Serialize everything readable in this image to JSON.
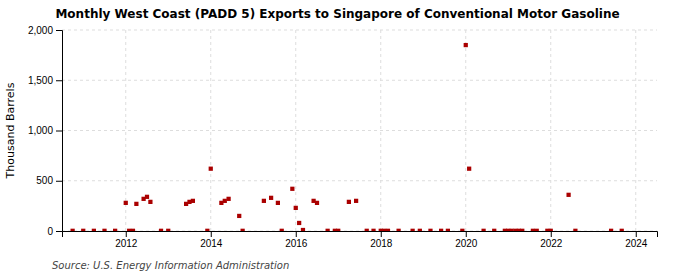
{
  "chart_data": {
    "type": "scatter",
    "title": "Monthly West Coast (PADD 5) Exports to Singapore of Conventional Motor Gasoline",
    "y_label": "Thousand Barrels",
    "annotations": [
      "Source: U.S. Energy Information Administration"
    ],
    "x": [
      2010.75,
      2011.0,
      2011.25,
      2011.5,
      2011.75,
      2012.0,
      2012.08,
      2012.17,
      2012.25,
      2012.42,
      2012.5,
      2012.58,
      2012.83,
      2013.0,
      2013.42,
      2013.5,
      2013.58,
      2013.92,
      2014.0,
      2014.25,
      2014.33,
      2014.42,
      2014.67,
      2014.75,
      2015.25,
      2015.42,
      2015.58,
      2015.67,
      2015.92,
      2016.0,
      2016.08,
      2016.17,
      2016.42,
      2016.5,
      2016.75,
      2016.92,
      2017.0,
      2017.25,
      2017.42,
      2017.67,
      2017.83,
      2018.0,
      2018.08,
      2018.17,
      2018.42,
      2018.75,
      2018.92,
      2019.17,
      2019.42,
      2019.58,
      2019.92,
      2020.0,
      2020.08,
      2020.42,
      2020.67,
      2020.92,
      2021.0,
      2021.08,
      2021.17,
      2021.25,
      2021.33,
      2021.58,
      2021.67,
      2021.92,
      2022.0,
      2022.42,
      2022.58,
      2023.42,
      2023.67
    ],
    "values": [
      2,
      2,
      2,
      2,
      2,
      280,
      2,
      2,
      270,
      320,
      340,
      290,
      2,
      2,
      270,
      290,
      300,
      2,
      620,
      280,
      300,
      320,
      150,
      2,
      300,
      330,
      280,
      2,
      420,
      230,
      80,
      10,
      300,
      280,
      2,
      2,
      2,
      290,
      300,
      2,
      2,
      2,
      2,
      2,
      2,
      2,
      2,
      2,
      2,
      2,
      2,
      1850,
      620,
      2,
      2,
      2,
      2,
      2,
      2,
      2,
      2,
      2,
      2,
      2,
      2,
      360,
      2,
      2,
      2
    ],
    "color": "#aa0000",
    "marker": "square",
    "xlim": [
      2010.5,
      2024.5
    ],
    "xticks": [
      2012,
      2014,
      2016,
      2018,
      2020,
      2022,
      2024
    ],
    "ylim": [
      0,
      2000
    ],
    "yticks": [
      0,
      500,
      {
        "value": 1000,
        "label": "1,000"
      },
      {
        "value": 1500,
        "label": "1,500"
      },
      {
        "value": 2000,
        "label": "2,000"
      }
    ],
    "grid": true
  }
}
